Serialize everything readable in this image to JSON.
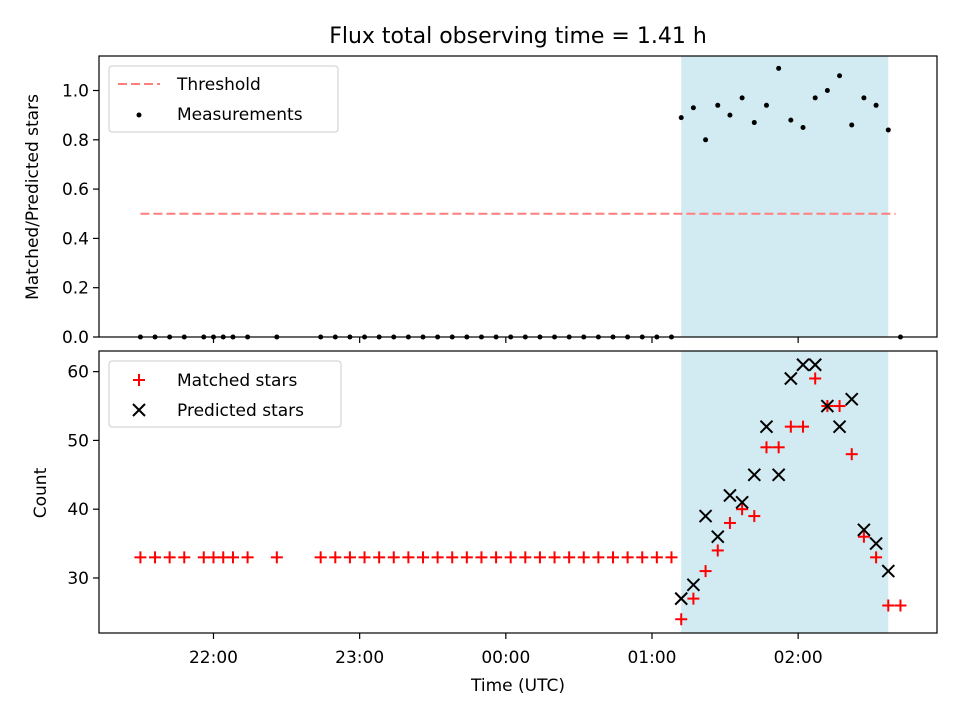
{
  "title": "Flux total observing time = 1.41 h",
  "colors": {
    "threshold": "#ff7f7f",
    "measurement": "#000000",
    "matched": "#ff0000",
    "predicted": "#000000",
    "observing_span": "#add8e6"
  },
  "chart_data": [
    {
      "type": "scatter",
      "panel": "top",
      "title": "Flux total observing time = 1.41 h",
      "xlabel": "",
      "ylabel": "Matched/Predicted stars",
      "xlim": [
        "21:13",
        "02:57"
      ],
      "ylim": [
        0,
        1.14
      ],
      "yticks": [
        "0.0",
        "0.2",
        "0.4",
        "0.6",
        "0.8",
        "1.0"
      ],
      "legend_position": "top-left",
      "legend": [
        {
          "label": "Threshold",
          "kind": "dashed-line"
        },
        {
          "label": "Measurements",
          "kind": "dot"
        }
      ],
      "shaded_span": {
        "start": "01:12",
        "end": "02:37"
      },
      "threshold": {
        "start": "21:30",
        "end": "02:40",
        "value": 0.5
      },
      "series": [
        {
          "name": "Measurements",
          "x": [
            "21:30",
            "21:36",
            "21:42",
            "21:48",
            "21:56",
            "22:00",
            "22:04",
            "22:08",
            "22:14",
            "22:26",
            "22:44",
            "22:50",
            "22:56",
            "23:02",
            "23:08",
            "23:14",
            "23:20",
            "23:26",
            "23:32",
            "23:38",
            "23:44",
            "23:50",
            "23:56",
            "00:02",
            "00:08",
            "00:14",
            "00:20",
            "00:26",
            "00:32",
            "00:38",
            "00:44",
            "00:50",
            "00:56",
            "01:02",
            "01:08",
            "01:12",
            "01:17",
            "01:22",
            "01:27",
            "01:32",
            "01:37",
            "01:42",
            "01:47",
            "01:52",
            "01:57",
            "02:02",
            "02:07",
            "02:12",
            "02:17",
            "02:22",
            "02:27",
            "02:32",
            "02:37",
            "02:42"
          ],
          "y": [
            0,
            0,
            0,
            0,
            0,
            0,
            0,
            0,
            0,
            0,
            0,
            0,
            0,
            0,
            0,
            0,
            0,
            0,
            0,
            0,
            0,
            0,
            0,
            0,
            0,
            0,
            0,
            0,
            0,
            0,
            0,
            0,
            0,
            0,
            0,
            0.89,
            0.93,
            0.8,
            0.94,
            0.9,
            0.97,
            0.87,
            0.94,
            1.09,
            0.88,
            0.85,
            0.97,
            1.0,
            1.06,
            0.86,
            0.97,
            0.94,
            0.84,
            0
          ]
        }
      ]
    },
    {
      "type": "scatter",
      "panel": "bottom",
      "xlabel": "Time (UTC)",
      "ylabel": "Count",
      "xlim": [
        "21:13",
        "02:57"
      ],
      "ylim": [
        22,
        63
      ],
      "xticks": [
        "22:00",
        "23:00",
        "00:00",
        "01:00",
        "02:00"
      ],
      "yticks": [
        "30",
        "40",
        "50",
        "60"
      ],
      "legend_position": "top-left",
      "legend": [
        {
          "label": "Matched stars",
          "kind": "plus"
        },
        {
          "label": "Predicted stars",
          "kind": "cross"
        }
      ],
      "shaded_span": {
        "start": "01:12",
        "end": "02:37"
      },
      "series": [
        {
          "name": "Matched stars",
          "x": [
            "21:30",
            "21:36",
            "21:42",
            "21:48",
            "21:56",
            "22:00",
            "22:04",
            "22:08",
            "22:14",
            "22:26",
            "22:44",
            "22:50",
            "22:56",
            "23:02",
            "23:08",
            "23:14",
            "23:20",
            "23:26",
            "23:32",
            "23:38",
            "23:44",
            "23:50",
            "23:56",
            "00:02",
            "00:08",
            "00:14",
            "00:20",
            "00:26",
            "00:32",
            "00:38",
            "00:44",
            "00:50",
            "00:56",
            "01:02",
            "01:08",
            "01:12",
            "01:17",
            "01:22",
            "01:27",
            "01:32",
            "01:37",
            "01:42",
            "01:47",
            "01:52",
            "01:57",
            "02:02",
            "02:07",
            "02:12",
            "02:17",
            "02:22",
            "02:27",
            "02:32",
            "02:37",
            "02:42"
          ],
          "y": [
            33,
            33,
            33,
            33,
            33,
            33,
            33,
            33,
            33,
            33,
            33,
            33,
            33,
            33,
            33,
            33,
            33,
            33,
            33,
            33,
            33,
            33,
            33,
            33,
            33,
            33,
            33,
            33,
            33,
            33,
            33,
            33,
            33,
            33,
            33,
            24,
            27,
            31,
            34,
            38,
            40,
            39,
            49,
            49,
            52,
            52,
            59,
            55,
            55,
            48,
            36,
            33,
            26,
            26
          ]
        },
        {
          "name": "Predicted stars",
          "x": [
            "01:12",
            "01:17",
            "01:22",
            "01:27",
            "01:32",
            "01:37",
            "01:42",
            "01:47",
            "01:52",
            "01:57",
            "02:02",
            "02:07",
            "02:12",
            "02:17",
            "02:22",
            "02:27",
            "02:32",
            "02:37"
          ],
          "y": [
            27,
            29,
            39,
            36,
            42,
            41,
            45,
            52,
            45,
            59,
            61,
            61,
            55,
            52,
            56,
            37,
            35,
            31
          ]
        }
      ]
    }
  ]
}
